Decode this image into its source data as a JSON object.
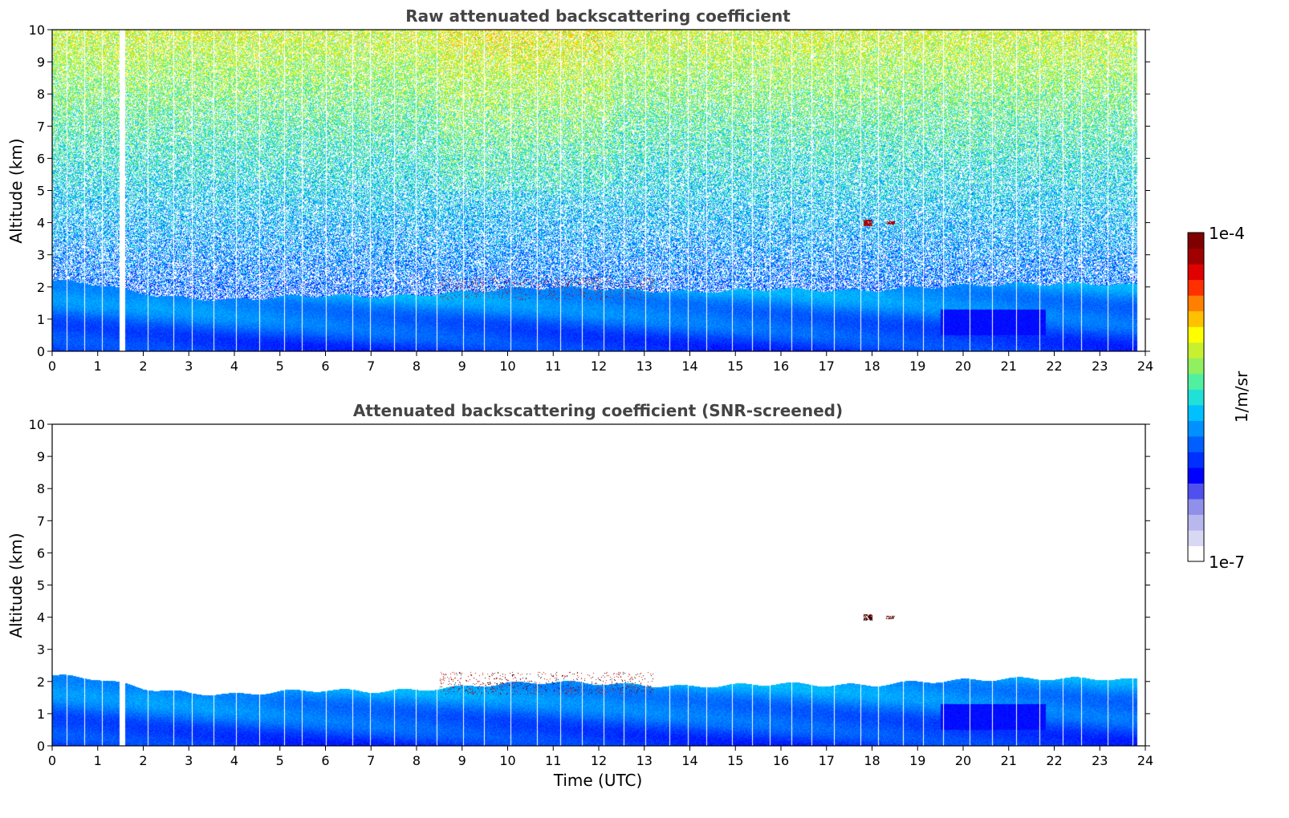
{
  "chart_data": [
    {
      "type": "heatmap",
      "title": "Raw attenuated backscattering coefficient",
      "xlabel": "",
      "ylabel": "Altitude (km)",
      "xlim": [
        0,
        24
      ],
      "ylim": [
        0,
        10
      ],
      "xticks": [
        "0",
        "1",
        "2",
        "3",
        "4",
        "5",
        "6",
        "7",
        "8",
        "9",
        "10",
        "11",
        "12",
        "13",
        "14",
        "15",
        "16",
        "17",
        "18",
        "19",
        "20",
        "21",
        "22",
        "23",
        "24"
      ],
      "yticks": [
        "0",
        "1",
        "2",
        "3",
        "4",
        "5",
        "6",
        "7",
        "8",
        "9",
        "10"
      ],
      "mode": "raw",
      "boundary_layer_top_km": [
        [
          0,
          2.2
        ],
        [
          1,
          2.1
        ],
        [
          2,
          1.8
        ],
        [
          3,
          1.65
        ],
        [
          4,
          1.6
        ],
        [
          5,
          1.7
        ],
        [
          6,
          1.75
        ],
        [
          7,
          1.7
        ],
        [
          8,
          1.75
        ],
        [
          9,
          1.85
        ],
        [
          10,
          1.95
        ],
        [
          11,
          2.0
        ],
        [
          12,
          1.95
        ],
        [
          13,
          1.9
        ],
        [
          14,
          1.85
        ],
        [
          15,
          1.9
        ],
        [
          16,
          1.95
        ],
        [
          17,
          1.9
        ],
        [
          18,
          1.9
        ],
        [
          19,
          2.0
        ],
        [
          20,
          2.05
        ],
        [
          21,
          2.1
        ],
        [
          22,
          2.1
        ],
        [
          23,
          2.1
        ],
        [
          24,
          2.05
        ]
      ],
      "features": [
        {
          "label": "cloud",
          "time_utc": [
            17.8,
            18.0
          ],
          "altitude_km": [
            3.9,
            4.1
          ]
        },
        {
          "label": "cloud",
          "time_utc": [
            18.3,
            18.5
          ],
          "altitude_km": [
            3.95,
            4.05
          ]
        },
        {
          "label": "cloud",
          "time_utc": [
            8.5,
            13.2
          ],
          "altitude_km": [
            1.6,
            2.3
          ]
        }
      ],
      "data_gap_utc": [
        1.47,
        1.57
      ]
    },
    {
      "type": "heatmap",
      "title": "Attenuated backscattering coefficient (SNR-screened)",
      "xlabel": "Time (UTC)",
      "ylabel": "Altitude (km)",
      "xlim": [
        0,
        24
      ],
      "ylim": [
        0,
        10
      ],
      "xticks": [
        "0",
        "1",
        "2",
        "3",
        "4",
        "5",
        "6",
        "7",
        "8",
        "9",
        "10",
        "11",
        "12",
        "13",
        "14",
        "15",
        "16",
        "17",
        "18",
        "19",
        "20",
        "21",
        "22",
        "23",
        "24"
      ],
      "yticks": [
        "0",
        "1",
        "2",
        "3",
        "4",
        "5",
        "6",
        "7",
        "8",
        "9",
        "10"
      ],
      "mode": "screened",
      "data_gap_utc": [
        1.47,
        1.57
      ]
    }
  ],
  "colorbar": {
    "label": "1/m/sr",
    "max_label": "1e-4",
    "min_label": "1e-7",
    "colors": [
      "#ffffff",
      "#d8d8f4",
      "#b8b8ee",
      "#9090ea",
      "#5050ee",
      "#0000ff",
      "#0030ff",
      "#0060ff",
      "#0090ff",
      "#00c0ff",
      "#20e0d8",
      "#50f0a0",
      "#90f060",
      "#c8f030",
      "#ffff00",
      "#ffc000",
      "#ff8000",
      "#ff3000",
      "#e00000",
      "#a00000",
      "#800000"
    ]
  },
  "colors": {
    "axis": "#000000",
    "title": "#444444",
    "background": "#ffffff"
  }
}
